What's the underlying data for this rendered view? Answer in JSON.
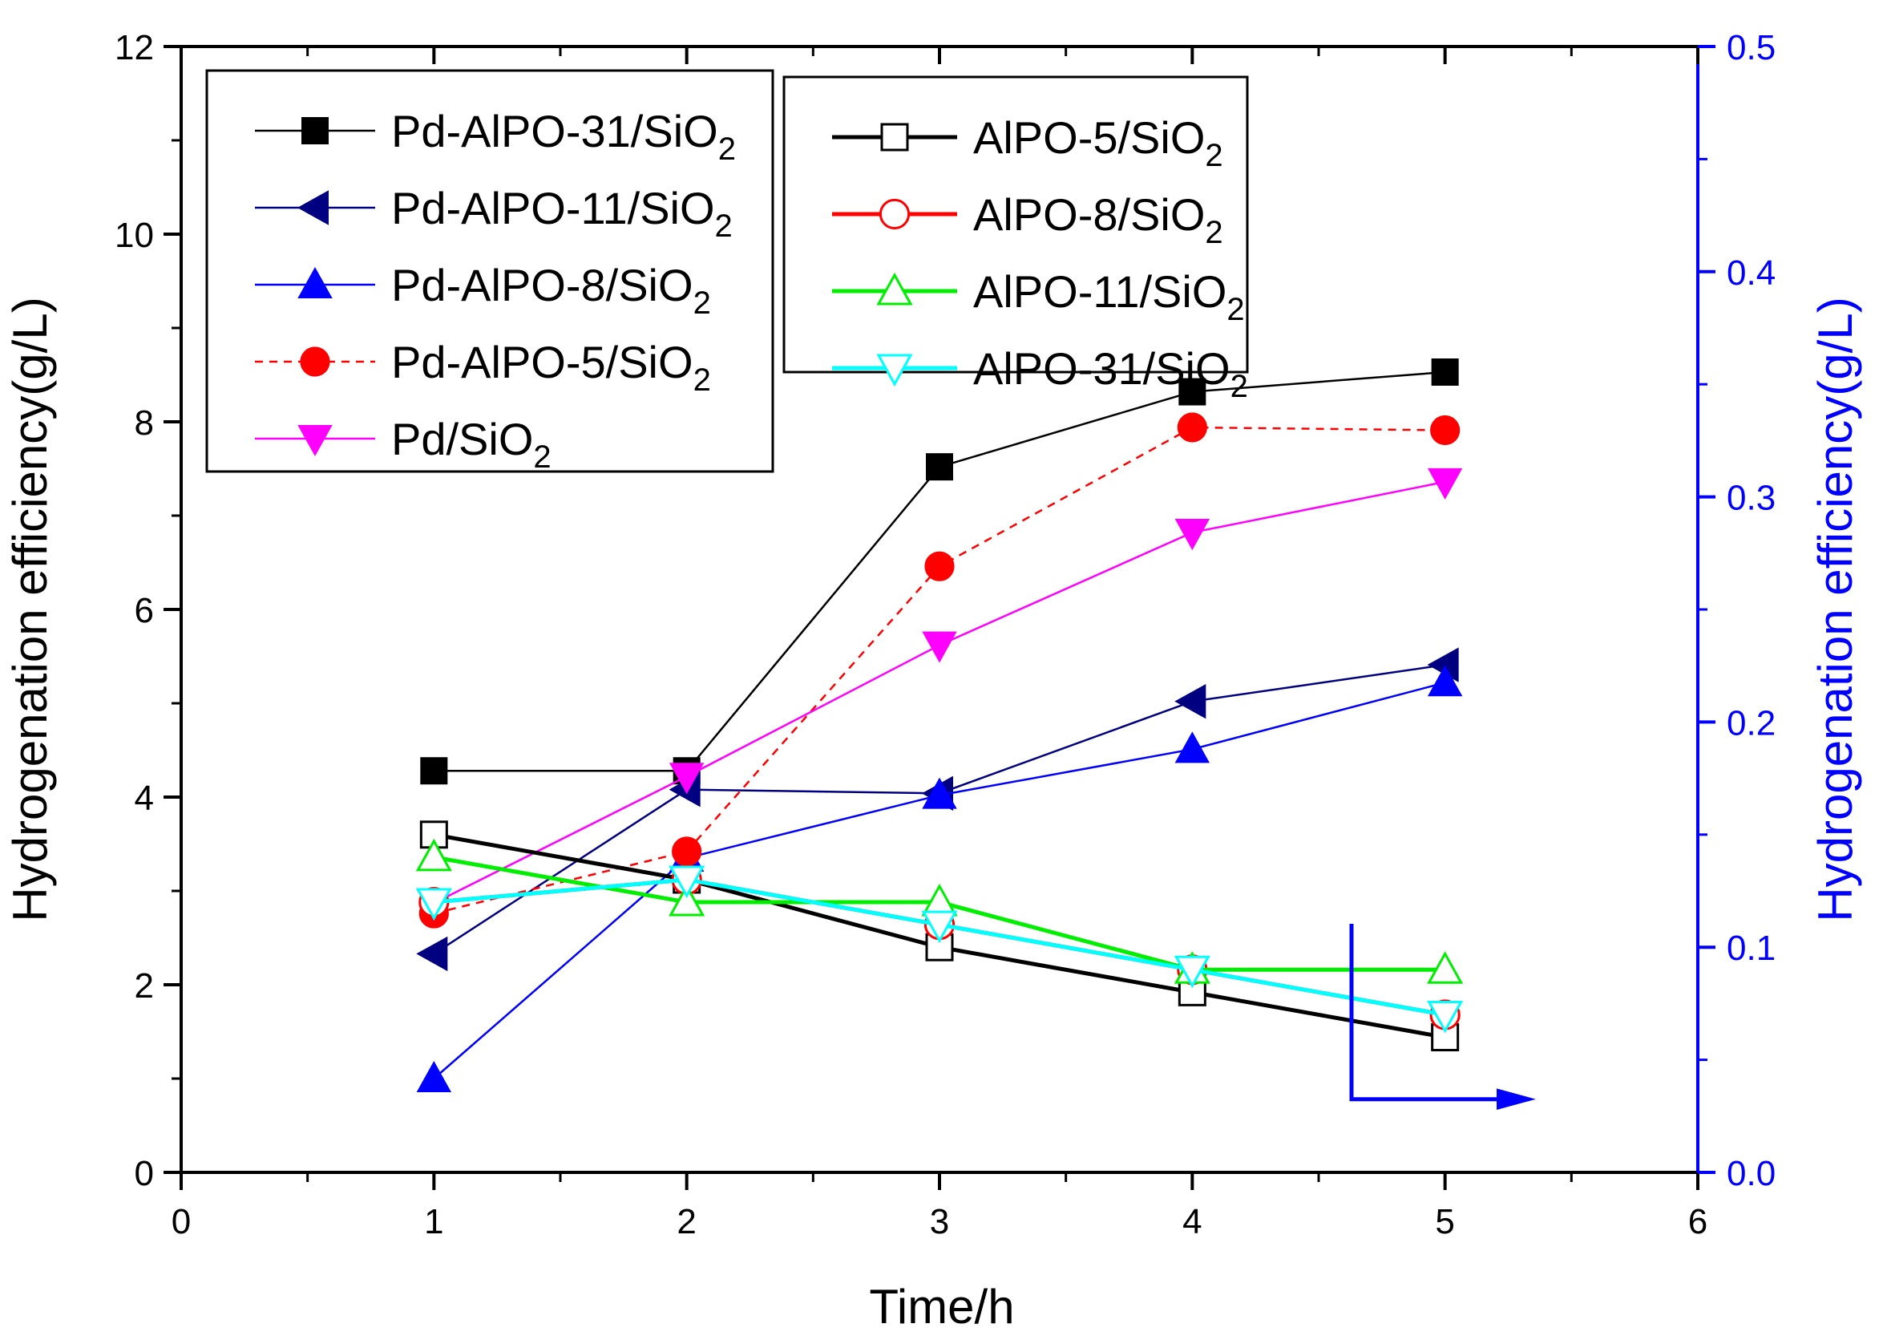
{
  "chart_data": {
    "type": "line",
    "xlabel": "Time/h",
    "ylabel_left": "Hydrogenation efficiency(g/L)",
    "ylabel_right": "Hydrogenation efficiency(g/L)",
    "xlim": [
      0,
      6
    ],
    "ylim_left": [
      0,
      12
    ],
    "ylim_right": [
      0,
      0.5
    ],
    "x_ticks": [
      0,
      1,
      2,
      3,
      4,
      5,
      6
    ],
    "y_left_ticks": [
      0,
      2,
      4,
      6,
      8,
      10,
      12
    ],
    "y_right_ticks": [
      0.0,
      0.1,
      0.2,
      0.3,
      0.4,
      0.5
    ],
    "x_tick_labels": [
      "0",
      "1",
      "2",
      "3",
      "4",
      "5",
      "6"
    ],
    "y_left_tick_labels": [
      "0",
      "2",
      "4",
      "6",
      "8",
      "10",
      "12"
    ],
    "y_right_tick_labels": [
      "0.0",
      "0.1",
      "0.2",
      "0.3",
      "0.4",
      "0.5"
    ],
    "right_axis_color": "#0000ff",
    "x": [
      1,
      2,
      3,
      4,
      5
    ],
    "legend_placement": "top-left (two boxes)",
    "grid": false,
    "series": [
      {
        "name": "Pd-AlPO-31/SiO",
        "sub": "2",
        "axis": "left",
        "color": "#000000",
        "marker": "square-filled",
        "dash": false,
        "values": [
          4.28,
          4.28,
          7.52,
          8.32,
          8.53
        ]
      },
      {
        "name": "Pd-AlPO-11/SiO",
        "sub": "2",
        "axis": "left",
        "color": "#000080",
        "marker": "triangle-left-filled",
        "dash": false,
        "values": [
          2.33,
          4.08,
          4.04,
          5.02,
          5.41
        ]
      },
      {
        "name": "Pd-AlPO-8/SiO",
        "sub": "2",
        "axis": "left",
        "color": "#0000ff",
        "marker": "triangle-up-filled",
        "dash": false,
        "values": [
          1.0,
          3.35,
          4.02,
          4.51,
          5.22
        ]
      },
      {
        "name": "Pd-AlPO-5/SiO",
        "sub": "2",
        "axis": "left",
        "color": "#ff0000",
        "marker": "circle-filled",
        "dash": true,
        "values": [
          2.76,
          3.42,
          6.46,
          7.94,
          7.91
        ]
      },
      {
        "name": "Pd/SiO",
        "sub": "2",
        "axis": "left",
        "color": "#ff00ff",
        "marker": "triangle-down-filled",
        "dash": false,
        "values": [
          2.87,
          4.22,
          5.62,
          6.82,
          7.36
        ]
      },
      {
        "name": "AlPO-5/SiO",
        "sub": "2",
        "axis": "right",
        "color": "#000000",
        "marker": "square-open",
        "dash": false,
        "values": [
          0.15,
          0.13,
          0.1,
          0.08,
          0.06
        ]
      },
      {
        "name": "AlPO-8/SiO",
        "sub": "2",
        "axis": "right",
        "color": "#ff0000",
        "marker": "circle-open",
        "dash": false,
        "values": [
          0.12,
          0.13,
          0.11,
          0.09,
          0.07
        ]
      },
      {
        "name": "AlPO-11/SiO",
        "sub": "2",
        "axis": "right",
        "color": "#00ee00",
        "marker": "triangle-up-open",
        "dash": false,
        "values": [
          0.14,
          0.12,
          0.12,
          0.09,
          0.09
        ]
      },
      {
        "name": "AlPO-31/SiO",
        "sub": "2",
        "axis": "right",
        "color": "#00ffff",
        "marker": "triangle-down-open",
        "dash": false,
        "values": [
          0.12,
          0.13,
          0.11,
          0.09,
          0.07
        ]
      }
    ],
    "annotations": [
      {
        "type": "arrow",
        "meaning": "open-symbol series read on right axis",
        "color": "#0000ff"
      }
    ]
  }
}
